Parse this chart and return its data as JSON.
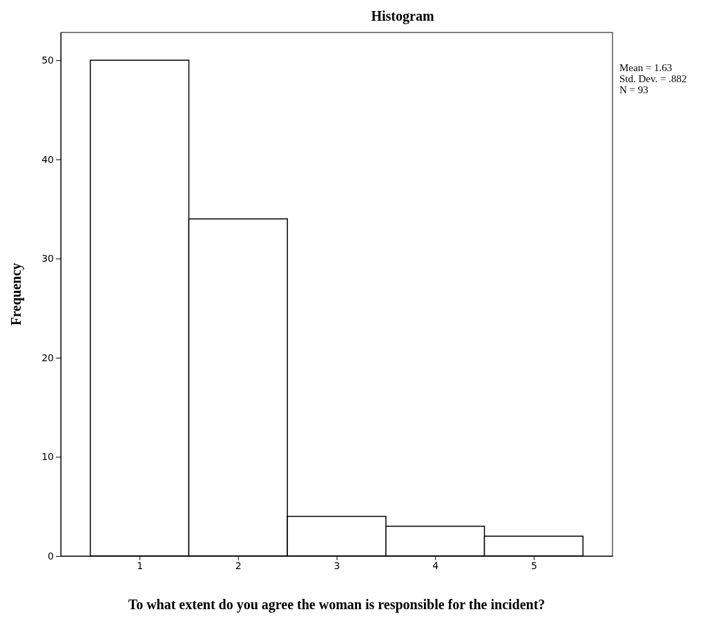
{
  "chart_data": {
    "type": "histogram",
    "title": "Histogram",
    "xlabel": "To what extent do you agree the woman is responsible for the incident?",
    "ylabel": "Frequency",
    "bins": [
      0.5,
      1.5,
      2.5,
      3.5,
      4.5,
      5.5
    ],
    "values": [
      50,
      34,
      4,
      3,
      2
    ],
    "color": "#ffffff",
    "xlim": [
      0.2,
      5.8
    ],
    "xticks": [
      1,
      2,
      3,
      4,
      5
    ],
    "ylim": [
      0,
      52.8
    ],
    "yticks": [
      0,
      10,
      20,
      30,
      40,
      50
    ],
    "grid": false,
    "annotations": [
      "Mean = 1.63",
      "Std. Dev. = .882",
      "N = 93"
    ]
  }
}
